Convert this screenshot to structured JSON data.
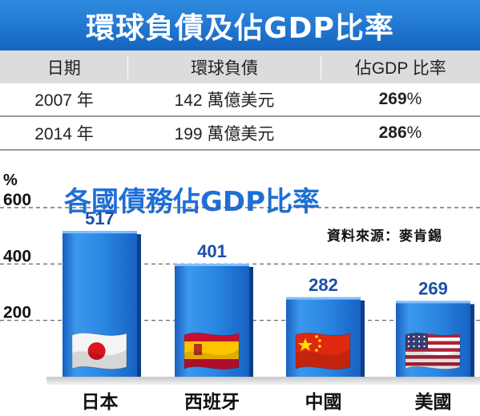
{
  "table": {
    "title": "環球負債及佔GDP比率",
    "headers": [
      "日期",
      "環球負債",
      "佔GDP 比率"
    ],
    "rows": [
      {
        "date": "2007 年",
        "debt": "142 萬億美元",
        "ratio_value": "269",
        "ratio_unit": "%"
      },
      {
        "date": "2014 年",
        "debt": "199 萬億美元",
        "ratio_value": "286",
        "ratio_unit": "%"
      }
    ]
  },
  "chart_data": {
    "type": "bar",
    "title": "各國債務佔GDP比率",
    "source": "資料來源：麥肯錫",
    "ylabel": "%",
    "ylim": [
      0,
      600
    ],
    "yticks": [
      "600",
      "400",
      "200"
    ],
    "categories": [
      "日本",
      "西班牙",
      "中國",
      "美國"
    ],
    "values": [
      517,
      401,
      282,
      269
    ],
    "data_labels": [
      "517",
      "401",
      "282",
      "269"
    ],
    "bar_color": "#2a86e0",
    "label_color": "#1a4fa8",
    "flags": [
      "japan-flag",
      "spain-flag",
      "china-flag",
      "usa-flag"
    ]
  }
}
